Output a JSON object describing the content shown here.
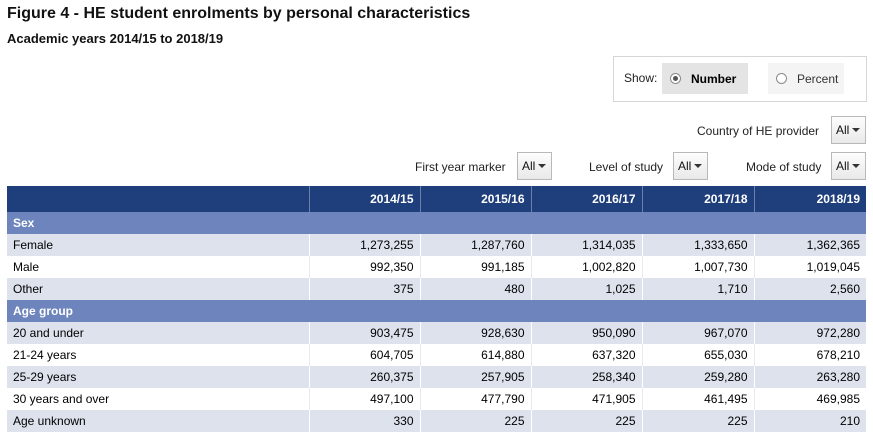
{
  "title": "Figure 4 - HE student enrolments by personal characteristics",
  "subtitle": "Academic years 2014/15 to 2018/19",
  "show": {
    "label": "Show:",
    "options": [
      {
        "label": "Number",
        "selected": true
      },
      {
        "label": "Percent",
        "selected": false
      }
    ]
  },
  "filters": {
    "country": {
      "label": "Country of HE provider",
      "value": "All"
    },
    "first_year": {
      "label": "First year marker",
      "value": "All"
    },
    "level": {
      "label": "Level of study",
      "value": "All"
    },
    "mode": {
      "label": "Mode of study",
      "value": "All"
    }
  },
  "table": {
    "columns": [
      "",
      "2014/15",
      "2015/16",
      "2016/17",
      "2017/18",
      "2018/19"
    ],
    "groups": [
      {
        "name": "Sex",
        "rows": [
          {
            "label": "Female",
            "values": [
              "1,273,255",
              "1,287,760",
              "1,314,035",
              "1,333,650",
              "1,362,365"
            ]
          },
          {
            "label": "Male",
            "values": [
              "992,350",
              "991,185",
              "1,002,820",
              "1,007,730",
              "1,019,045"
            ]
          },
          {
            "label": "Other",
            "values": [
              "375",
              "480",
              "1,025",
              "1,710",
              "2,560"
            ]
          }
        ]
      },
      {
        "name": "Age group",
        "rows": [
          {
            "label": "20 and under",
            "values": [
              "903,475",
              "928,630",
              "950,090",
              "967,070",
              "972,280"
            ]
          },
          {
            "label": "21-24 years",
            "values": [
              "604,705",
              "614,880",
              "637,320",
              "655,030",
              "678,210"
            ]
          },
          {
            "label": "25-29 years",
            "values": [
              "260,375",
              "257,905",
              "258,340",
              "259,280",
              "263,280"
            ]
          },
          {
            "label": "30 years and over",
            "values": [
              "497,100",
              "477,790",
              "471,905",
              "461,495",
              "469,985"
            ]
          },
          {
            "label": "Age unknown",
            "values": [
              "330",
              "225",
              "225",
              "225",
              "210"
            ]
          }
        ]
      }
    ]
  }
}
